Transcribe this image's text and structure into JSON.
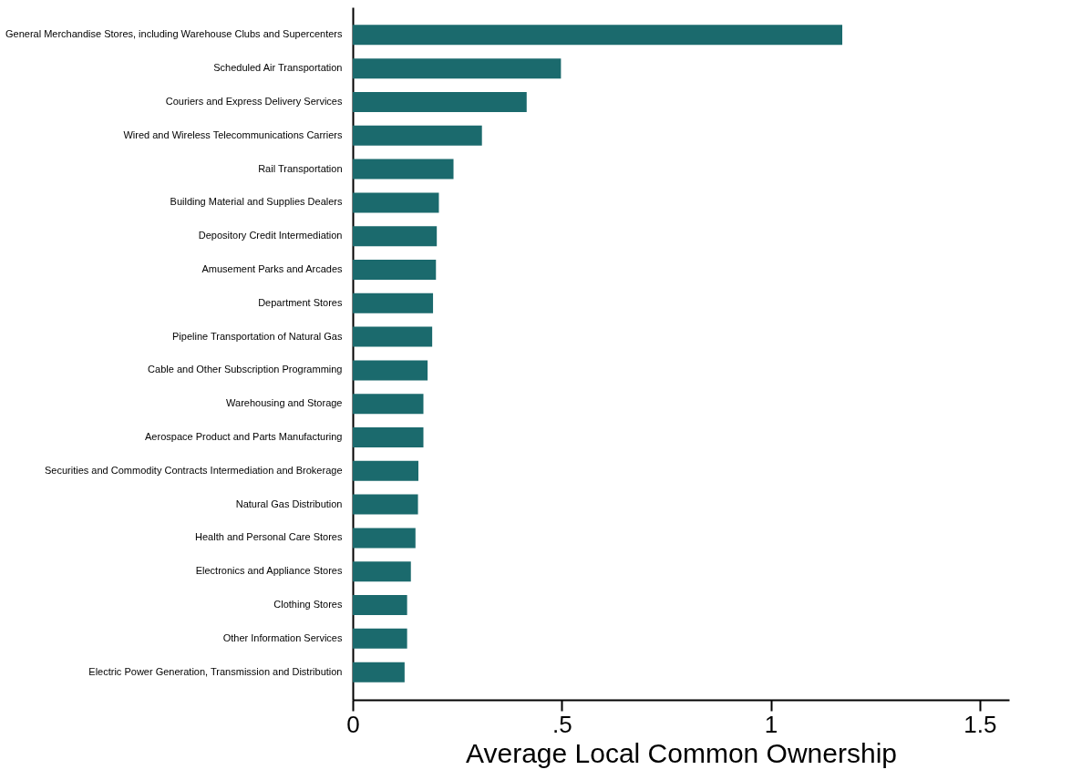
{
  "chart_data": {
    "type": "bar",
    "orientation": "horizontal",
    "xlabel": "Average Local Common Ownership",
    "categories": [
      "General Merchandise Stores, including Warehouse Clubs and Supercenters",
      "Scheduled Air Transportation",
      "Couriers and Express Delivery Services",
      "Wired and Wireless Telecommunications Carriers",
      "Rail Transportation",
      "Building Material and Supplies Dealers",
      "Depository Credit Intermediation",
      "Amusement Parks and Arcades",
      "Department Stores",
      "Pipeline Transportation of Natural Gas",
      "Cable and Other Subscription Programming",
      "Warehousing and Storage",
      "Aerospace Product and Parts Manufacturing",
      "Securities and Commodity Contracts Intermediation and Brokerage",
      "Natural Gas Distribution",
      "Health and Personal Care Stores",
      "Electronics and Appliance Stores",
      "Clothing Stores",
      "Other Information Services",
      "Electric Power Generation, Transmission and Distribution"
    ],
    "values": [
      1.171,
      0.498,
      0.416,
      0.309,
      0.241,
      0.206,
      0.201,
      0.199,
      0.192,
      0.19,
      0.179,
      0.169,
      0.169,
      0.157,
      0.156,
      0.15,
      0.139,
      0.13,
      0.13,
      0.124
    ],
    "color": "#1b6a6d",
    "xlim": [
      0,
      1.57
    ],
    "xticks": [
      0,
      {
        "value": 0.5,
        "label": ".5"
      },
      1,
      1.5
    ],
    "grid": false
  }
}
